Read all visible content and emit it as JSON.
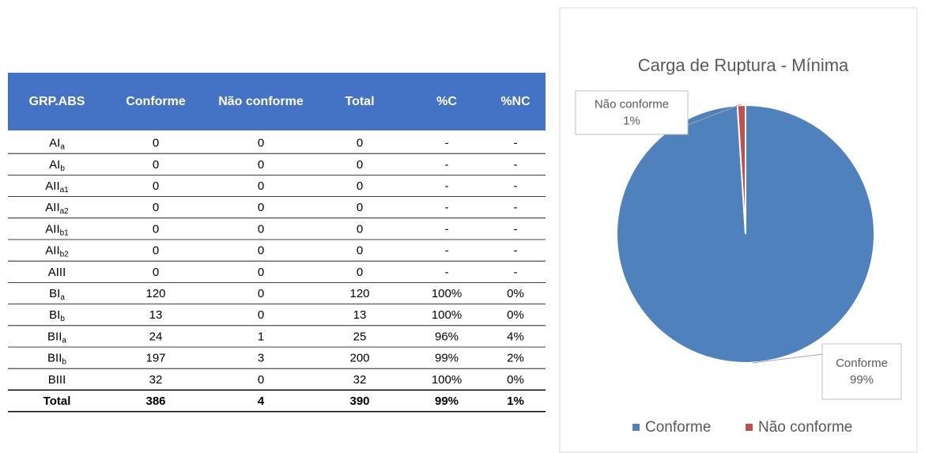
{
  "table": {
    "header": [
      "GRP.ABS",
      "Conforme",
      "Não conforme",
      "Total",
      "%C",
      "%NC"
    ],
    "rows": [
      [
        {
          "text": "AI",
          "sub": "a"
        },
        0,
        0,
        0,
        "-",
        "-"
      ],
      [
        {
          "text": "AI",
          "sub": "b"
        },
        0,
        0,
        0,
        "-",
        "-"
      ],
      [
        {
          "text": "AII",
          "sub": "a1"
        },
        0,
        0,
        0,
        "-",
        "-"
      ],
      [
        {
          "text": "AII",
          "sub": "a2"
        },
        0,
        0,
        0,
        "-",
        "-"
      ],
      [
        {
          "text": "AII",
          "sub": "b1"
        },
        0,
        0,
        0,
        "-",
        "-"
      ],
      [
        {
          "text": "AII",
          "sub": "b2"
        },
        0,
        0,
        0,
        "-",
        "-"
      ],
      [
        {
          "text": "AIII"
        },
        0,
        0,
        0,
        "-",
        "-"
      ],
      [
        {
          "text": "BI",
          "sub": "a"
        },
        120,
        0,
        120,
        "100%",
        "0%"
      ],
      [
        {
          "text": "BI",
          "sub": "b"
        },
        13,
        0,
        13,
        "100%",
        "0%"
      ],
      [
        {
          "text": "BII",
          "sub": "a"
        },
        24,
        1,
        25,
        "96%",
        "4%"
      ],
      [
        {
          "text": "BII",
          "sub": "b"
        },
        197,
        3,
        200,
        "99%",
        "2%"
      ],
      [
        {
          "text": "BIII"
        },
        32,
        0,
        32,
        "100%",
        "0%"
      ]
    ],
    "total": [
      "Total",
      386,
      4,
      390,
      "99%",
      "1%"
    ]
  },
  "chart_data": {
    "type": "pie",
    "title": "Carga de Ruptura - Mínima",
    "categories": [
      "Conforme",
      "Não conforme"
    ],
    "values": [
      99,
      1
    ],
    "value_labels": [
      "99%",
      "1%"
    ],
    "colors": [
      "#4f81bd",
      "#c0504d"
    ],
    "legend": "bottom"
  }
}
